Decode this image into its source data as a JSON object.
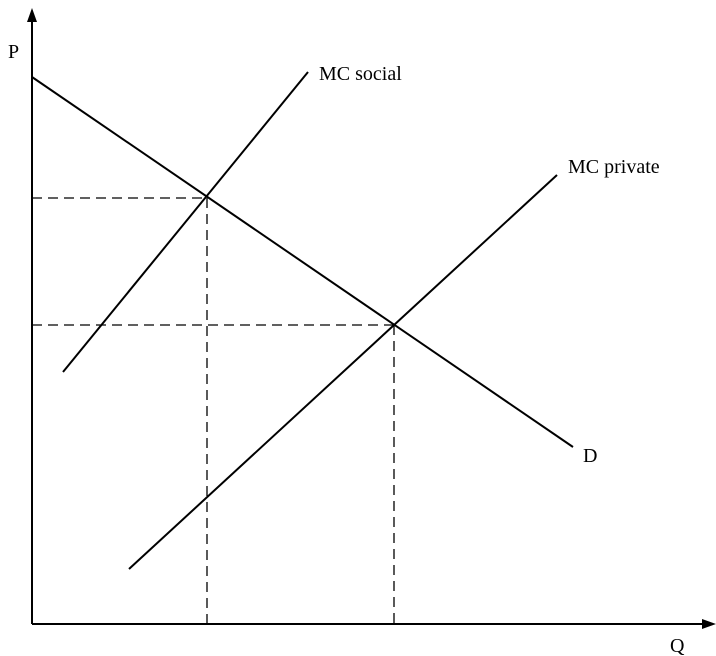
{
  "axes": {
    "y_label": "P",
    "x_label": "Q"
  },
  "curves": {
    "mc_social": "MC social",
    "mc_private": "MC private",
    "demand": "D"
  },
  "colors": {
    "ink": "#000000",
    "background": "#ffffff"
  }
}
